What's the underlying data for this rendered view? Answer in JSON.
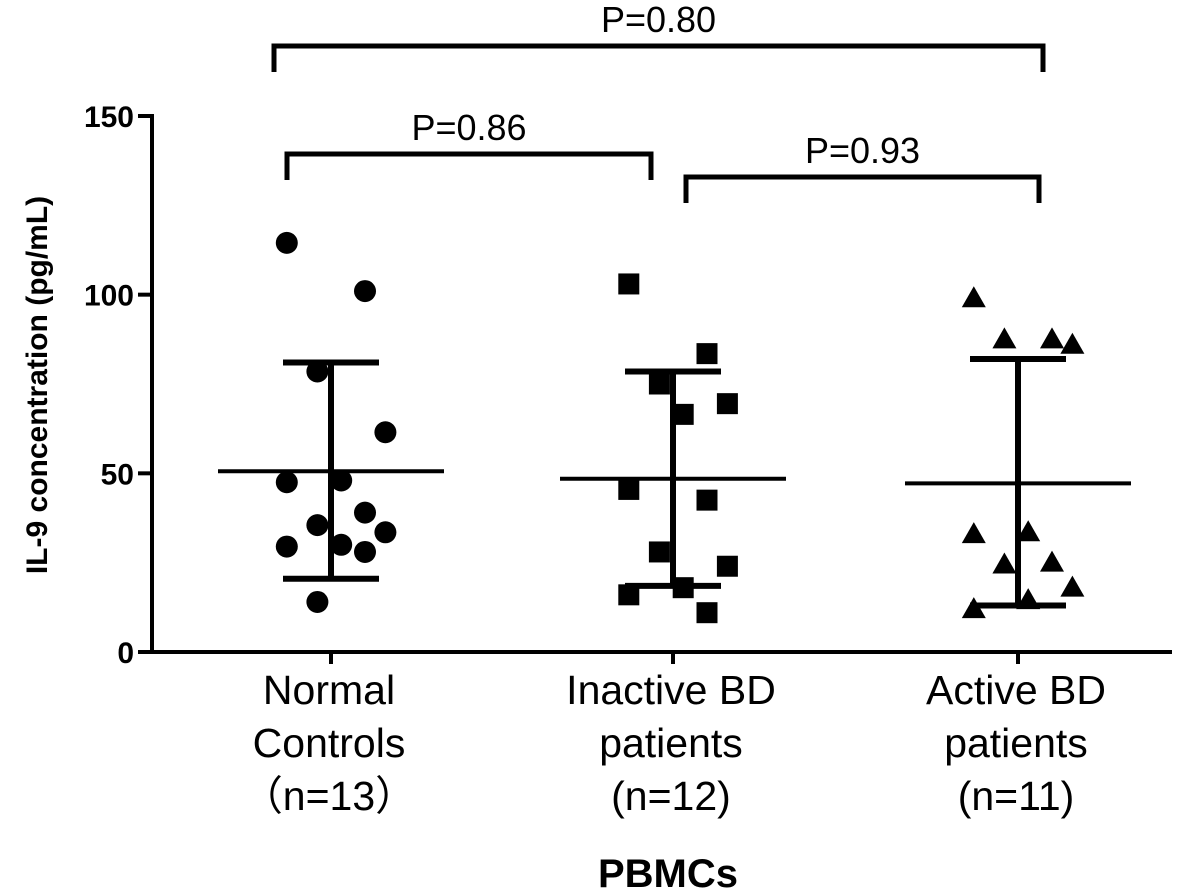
{
  "chart_data": {
    "type": "scatter",
    "ylabel": "IL-9 concentration  (pg/mL)",
    "xlabel": "PBMCs",
    "ylim": [
      0,
      150
    ],
    "yticks": [
      0,
      50,
      100,
      150
    ],
    "grid": false,
    "legend": "none",
    "groups": [
      {
        "label_lines": [
          "Normal",
          "Controls",
          "（n=13）"
        ],
        "marker": "circle",
        "values": [
          114.5,
          101,
          78.5,
          61.5,
          48,
          47.5,
          39,
          35.5,
          33.5,
          30,
          29.5,
          28,
          14
        ],
        "mean": 50.6,
        "sd_upper": 81,
        "sd_lower": 20.5
      },
      {
        "label_lines": [
          "Inactive BD",
          "patients",
          "(n=12)"
        ],
        "marker": "square",
        "values": [
          103,
          83.5,
          75,
          69.5,
          66.5,
          45.5,
          42.5,
          28,
          24,
          18,
          16,
          11
        ],
        "mean": 48.5,
        "sd_upper": 78.5,
        "sd_lower": 18.5
      },
      {
        "label_lines": [
          "Active BD",
          "patients",
          "(n=11)"
        ],
        "marker": "triangle",
        "values": [
          99,
          87.5,
          87.5,
          86,
          33.5,
          33,
          25,
          24.5,
          18,
          14.5,
          12
        ],
        "mean": 47.2,
        "sd_upper": 82,
        "sd_lower": 13
      }
    ],
    "comparisons": [
      {
        "from": 0,
        "to": 2,
        "label": "P=0.80"
      },
      {
        "from": 0,
        "to": 1,
        "label": "P=0.86"
      },
      {
        "from": 1,
        "to": 2,
        "label": "P=0.93"
      }
    ]
  }
}
